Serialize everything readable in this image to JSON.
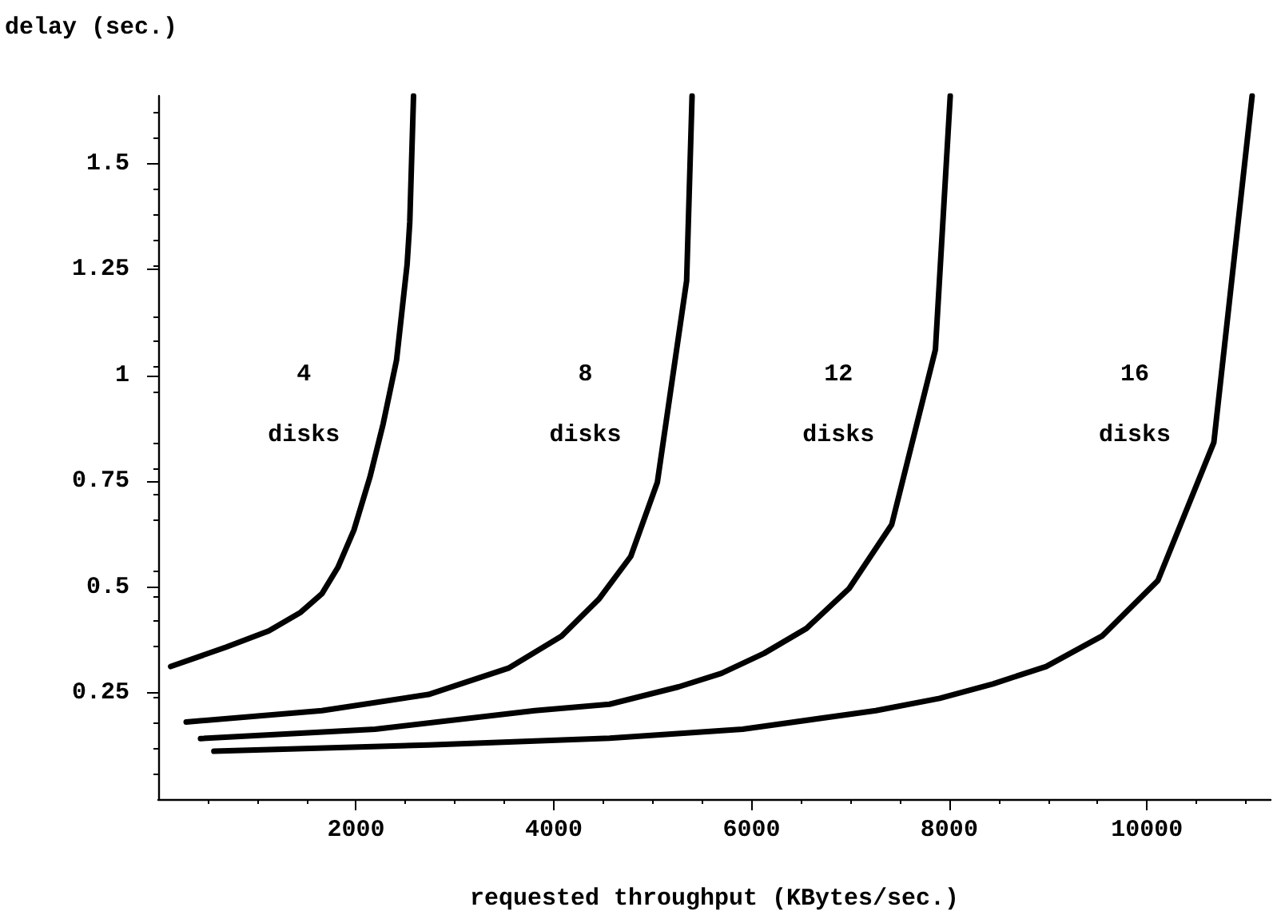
{
  "chart_data": {
    "type": "line",
    "xlabel": "requested throughput (KBytes/sec.)",
    "ylabel": "delay (sec.)",
    "xlim": [
      0,
      11250
    ],
    "ylim": [
      0,
      1.66
    ],
    "xticks": [
      2000,
      4000,
      6000,
      8000,
      10000
    ],
    "yticks": [
      0.25,
      0.5,
      0.75,
      1,
      1.25,
      1.5
    ],
    "grid": false,
    "marker": "none",
    "line_style": "solid",
    "annotations": [
      "4",
      "disks",
      "8",
      "disks",
      "12",
      "disks",
      "16",
      "disks"
    ],
    "series": [
      {
        "color": "#000000",
        "x": [
          126,
          687,
          1118,
          1441,
          1656,
          1817,
          1979,
          2141,
          2275,
          2410,
          2517,
          2544,
          2582
        ],
        "values": [
          0.313,
          0.359,
          0.397,
          0.441,
          0.485,
          0.547,
          0.635,
          0.76,
          0.886,
          1.036,
          1.262,
          1.362,
          1.66
        ]
      },
      {
        "color": "#000000",
        "x": [
          283,
          1656,
          2733,
          3541,
          4079,
          4456,
          4779,
          5048,
          5344,
          5399
        ],
        "values": [
          0.182,
          0.209,
          0.247,
          0.309,
          0.385,
          0.472,
          0.573,
          0.748,
          1.224,
          1.66
        ]
      },
      {
        "color": "#000000",
        "x": [
          428,
          2194,
          3809,
          4564,
          5263,
          5695,
          6126,
          6556,
          6987,
          7418,
          7860,
          8010
        ],
        "values": [
          0.143,
          0.165,
          0.209,
          0.224,
          0.265,
          0.297,
          0.344,
          0.403,
          0.497,
          0.648,
          1.061,
          1.66
        ]
      },
      {
        "color": "#000000",
        "x": [
          563,
          2733,
          4564,
          5910,
          7257,
          7903,
          8441,
          8979,
          9545,
          10110,
          10676,
          11063
        ],
        "values": [
          0.113,
          0.128,
          0.144,
          0.165,
          0.209,
          0.238,
          0.272,
          0.313,
          0.385,
          0.516,
          0.842,
          1.66
        ]
      }
    ]
  }
}
